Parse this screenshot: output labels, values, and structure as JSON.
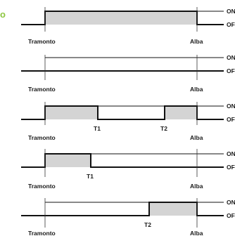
{
  "accent_glyph": "o",
  "colors": {
    "accent": "#8cc63f",
    "fill": "#d4d4d4",
    "line": "#111111"
  },
  "state_labels": {
    "on": "ON",
    "off": "OFF"
  },
  "rows": [
    {
      "id": "row-1",
      "markers": [
        {
          "text": "Tramonto"
        },
        {
          "text": "Alba"
        }
      ]
    },
    {
      "id": "row-2",
      "markers": [
        {
          "text": "Tramonto"
        },
        {
          "text": "Alba"
        }
      ]
    },
    {
      "id": "row-3",
      "markers": [
        {
          "text": "T1"
        },
        {
          "text": "T2"
        },
        {
          "text": "Tramonto"
        },
        {
          "text": "Alba"
        }
      ]
    },
    {
      "id": "row-4",
      "markers": [
        {
          "text": "T1"
        },
        {
          "text": "Tramonto"
        },
        {
          "text": "Alba"
        }
      ]
    },
    {
      "id": "row-5",
      "markers": [
        {
          "text": "T2"
        },
        {
          "text": "Tramonto"
        },
        {
          "text": "Alba"
        }
      ]
    }
  ]
}
